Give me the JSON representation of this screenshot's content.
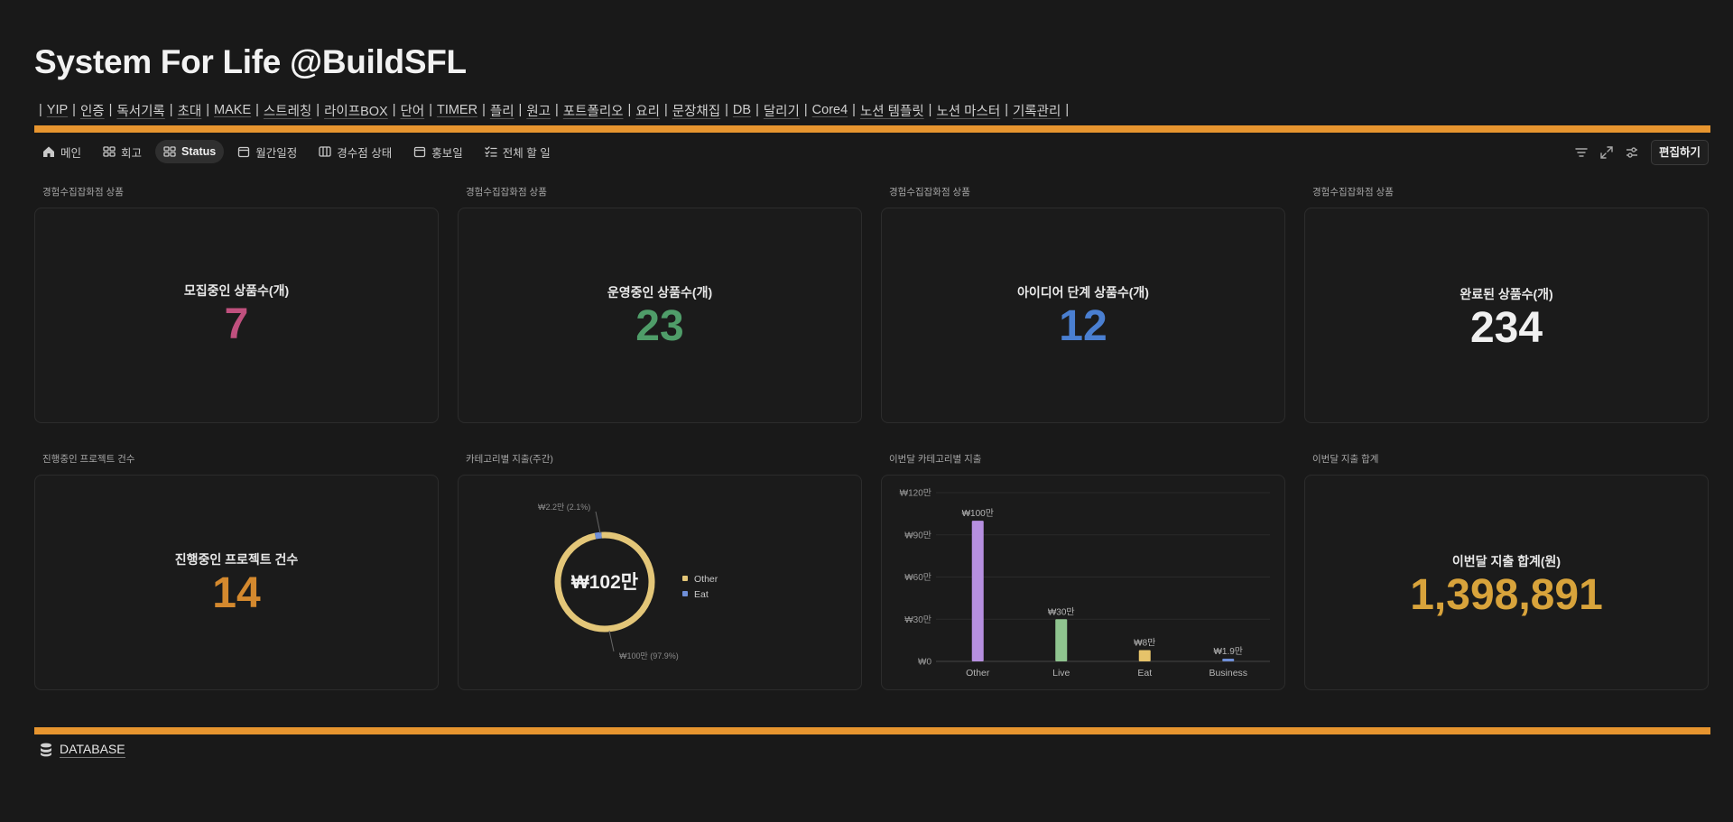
{
  "page": {
    "title": "System For Life @BuildSFL",
    "links": [
      "YIP",
      "인증",
      "독서기록",
      "초대",
      "MAKE",
      "스트레칭",
      "라이프BOX",
      "단어",
      "TIMER",
      "플리",
      "원고",
      "포트폴리오",
      "요리",
      "문장채집",
      "DB",
      "달리기",
      "Core4",
      "노션 템플릿",
      "노션 마스터",
      "기록관리"
    ]
  },
  "colors": {
    "accent_bar": "#e7952f",
    "pink": "#c0507e",
    "green": "#4f9d69",
    "blue": "#4a7fd1",
    "white": "#f0f0f0",
    "orange": "#d4892e",
    "gold": "#d8a33b"
  },
  "tabs": [
    {
      "label": "메인",
      "icon": "home-icon"
    },
    {
      "label": "회고",
      "icon": "gallery-icon"
    },
    {
      "label": "Status",
      "icon": "gallery-icon",
      "active": true
    },
    {
      "label": "월간일정",
      "icon": "calendar-icon"
    },
    {
      "label": "경수점 상태",
      "icon": "board-icon"
    },
    {
      "label": "홍보일",
      "icon": "calendar-icon"
    },
    {
      "label": "전체 할 일",
      "icon": "checklist-icon"
    }
  ],
  "toolbar": {
    "icons": [
      "filter-icon",
      "expand-icon",
      "settings-sliders-icon"
    ],
    "edit_label": "편집하기"
  },
  "cards": [
    {
      "caption": "경험수집잡화점 상품",
      "label": "모집중인 상품수(개)",
      "value": "7"
    },
    {
      "caption": "경험수집잡화점 상품",
      "label": "운영중인 상품수(개)",
      "value": "23"
    },
    {
      "caption": "경험수집잡화점 상품",
      "label": "아이디어 단계 상품수(개)",
      "value": "12"
    },
    {
      "caption": "경험수집잡화점 상품",
      "label": "완료된 상품수(개)",
      "value": "234"
    },
    {
      "caption": "진행중인 프로젝트 건수",
      "label": "진행중인 프로젝트 건수",
      "value": "14"
    },
    {
      "caption": "카테고리별 지출(주간)"
    },
    {
      "caption": "이번달 카테고리별 지출"
    },
    {
      "caption": "이번달 지출 합계",
      "label": "이번달 지출 합계(원)",
      "value": "1,398,891"
    }
  ],
  "chart_data": [
    {
      "type": "pie",
      "title": "",
      "center_label": "₩102만",
      "slices": [
        {
          "name": "Other",
          "value": 100,
          "percent": 97.9,
          "label": "₩100만 (97.9%)",
          "color": "#e3c678"
        },
        {
          "name": "Eat",
          "value": 2.2,
          "percent": 2.1,
          "label": "₩2.2만 (2.1%)",
          "color": "#6f8fd8"
        }
      ],
      "legend": [
        "Other",
        "Eat"
      ],
      "legend_position": "right"
    },
    {
      "type": "bar",
      "title": "",
      "categories": [
        "Other",
        "Live",
        "Eat",
        "Business"
      ],
      "values": [
        100,
        30,
        8,
        1.9
      ],
      "data_labels": [
        "₩100만",
        "₩30만",
        "₩8만",
        "₩1.9만"
      ],
      "colors": [
        "#b68fe0",
        "#8fc48f",
        "#e6c36a",
        "#6f8fd8"
      ],
      "yticks": [
        "₩0",
        "₩30만",
        "₩60만",
        "₩90만",
        "₩120만"
      ],
      "ylim": [
        0,
        120
      ],
      "grid": true
    }
  ],
  "database": {
    "label": "DATABASE",
    "icon": "database-icon"
  }
}
